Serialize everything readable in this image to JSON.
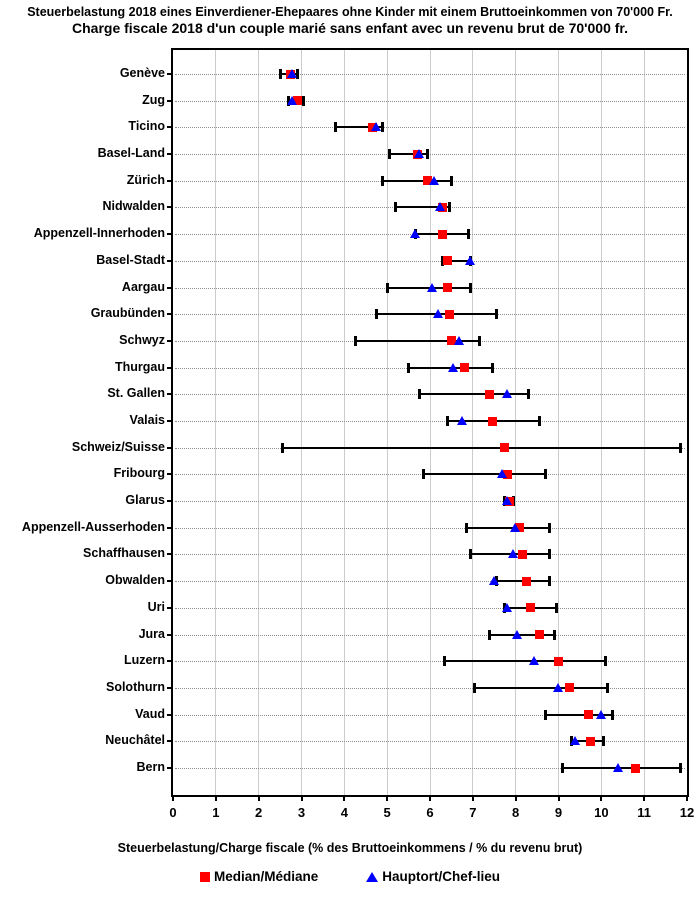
{
  "title_de": "Steuerbelastung 2018 eines Einverdiener-Ehepaares ohne Kinder mit einem Bruttoeinkommen von 70'000 Fr.",
  "title_fr": "Charge fiscale 2018 d'un couple marié sans enfant avec un revenu brut de 70'000 fr.",
  "axis": {
    "xlabel": "Steuerbelastung/Charge fiscale (% des Bruttoeinkommens / % du revenu brut)",
    "xmin": 0,
    "xmax": 12,
    "xticks": [
      0,
      1,
      2,
      3,
      4,
      5,
      6,
      7,
      8,
      9,
      10,
      11,
      12
    ]
  },
  "legend": {
    "median_label": "Median/Médiane",
    "capital_label": "Hauptort/Chef-lieu"
  },
  "colors": {
    "median_marker": "#ff0000",
    "capital_marker": "#0000ff",
    "whisker": "#000000",
    "x_gridline": "#cccccc",
    "row_dotline": "#909090"
  },
  "chart_data": {
    "type": "scatter",
    "subtype": "horizontal-range-with-markers",
    "title": "Steuerbelastung 2018 eines Einverdiener-Ehepaares ohne Kinder mit einem Bruttoeinkommen von 70'000 Fr. / Charge fiscale 2018 d'un couple marié sans enfant avec un revenu brut de 70'000 fr.",
    "xlabel": "Steuerbelastung/Charge fiscale (% des Bruttoeinkommens / % du revenu brut)",
    "xlim": [
      0,
      12
    ],
    "grid": true,
    "legend_position": "bottom",
    "marker_legend": {
      "median": "red-square",
      "capital": "blue-triangle",
      "range": "black-whisker"
    },
    "rows": [
      {
        "canton": "Genève",
        "min": 2.5,
        "median": 2.75,
        "capital": 2.8,
        "max": 2.9
      },
      {
        "canton": "Zug",
        "min": 2.7,
        "median": 2.9,
        "capital": 2.8,
        "max": 3.05
      },
      {
        "canton": "Ticino",
        "min": 3.8,
        "median": 4.65,
        "capital": 4.75,
        "max": 4.9
      },
      {
        "canton": "Basel-Land",
        "min": 5.05,
        "median": 5.7,
        "capital": 5.75,
        "max": 5.95
      },
      {
        "canton": "Zürich",
        "min": 4.9,
        "median": 5.95,
        "capital": 6.1,
        "max": 6.5
      },
      {
        "canton": "Nidwalden",
        "min": 5.2,
        "median": 6.3,
        "capital": 6.25,
        "max": 6.45
      },
      {
        "canton": "Appenzell-Innerhoden",
        "min": 5.65,
        "median": 6.3,
        "capital": 5.65,
        "max": 6.9
      },
      {
        "canton": "Basel-Stadt",
        "min": 6.3,
        "median": 6.4,
        "capital": 6.95,
        "max": 6.95
      },
      {
        "canton": "Aargau",
        "min": 5.0,
        "median": 6.4,
        "capital": 6.05,
        "max": 6.95
      },
      {
        "canton": "Graubünden",
        "min": 4.75,
        "median": 6.45,
        "capital": 6.2,
        "max": 7.55
      },
      {
        "canton": "Schwyz",
        "min": 4.25,
        "median": 6.5,
        "capital": 6.7,
        "max": 7.15
      },
      {
        "canton": "Thurgau",
        "min": 5.5,
        "median": 6.8,
        "capital": 6.55,
        "max": 7.45
      },
      {
        "canton": "St. Gallen",
        "min": 5.75,
        "median": 7.4,
        "capital": 7.8,
        "max": 8.3
      },
      {
        "canton": "Valais",
        "min": 6.4,
        "median": 7.45,
        "capital": 6.75,
        "max": 8.55
      },
      {
        "canton": "Schweiz/Suisse",
        "min": 2.55,
        "median": 7.75,
        "capital": null,
        "max": 11.85
      },
      {
        "canton": "Fribourg",
        "min": 5.85,
        "median": 7.8,
        "capital": 7.7,
        "max": 8.7
      },
      {
        "canton": "Glarus",
        "min": 7.75,
        "median": 7.85,
        "capital": 7.8,
        "max": 7.95
      },
      {
        "canton": "Appenzell-Ausserhoden",
        "min": 6.85,
        "median": 8.1,
        "capital": 8.0,
        "max": 8.8
      },
      {
        "canton": "Schaffhausen",
        "min": 6.95,
        "median": 8.15,
        "capital": 7.95,
        "max": 8.8
      },
      {
        "canton": "Obwalden",
        "min": 7.55,
        "median": 8.25,
        "capital": 7.5,
        "max": 8.8
      },
      {
        "canton": "Uri",
        "min": 7.75,
        "median": 8.35,
        "capital": 7.8,
        "max": 8.95
      },
      {
        "canton": "Jura",
        "min": 7.4,
        "median": 8.55,
        "capital": 8.05,
        "max": 8.9
      },
      {
        "canton": "Luzern",
        "min": 6.35,
        "median": 9.0,
        "capital": 8.45,
        "max": 10.1
      },
      {
        "canton": "Solothurn",
        "min": 7.05,
        "median": 9.25,
        "capital": 9.0,
        "max": 10.15
      },
      {
        "canton": "Vaud",
        "min": 8.7,
        "median": 9.7,
        "capital": 10.0,
        "max": 10.25
      },
      {
        "canton": "Neuchâtel",
        "min": 9.3,
        "median": 9.75,
        "capital": 9.4,
        "max": 10.05
      },
      {
        "canton": "Bern",
        "min": 9.1,
        "median": 10.8,
        "capital": 10.4,
        "max": 11.85
      }
    ]
  }
}
